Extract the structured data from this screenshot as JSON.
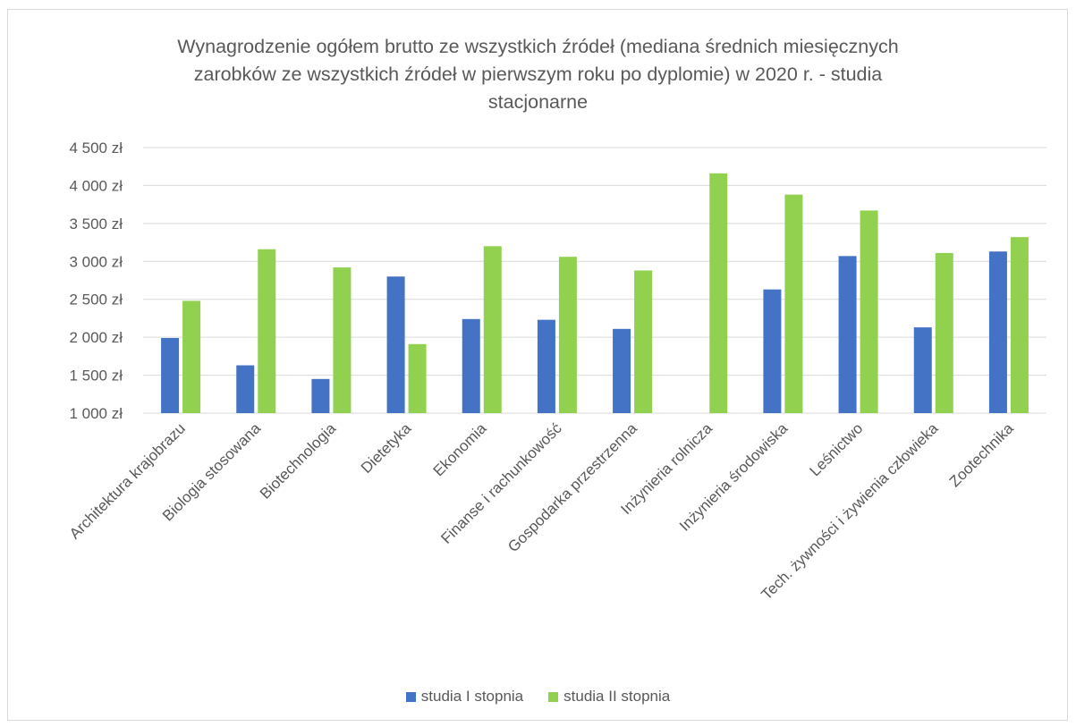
{
  "chart_data": {
    "type": "bar",
    "title_lines": [
      "Wynagrodzenie ogółem brutto ze wszystkich źródeł (mediana średnich miesięcznych",
      "zarobków ze wszystkich źródeł w pierwszym roku po dyplomie) w 2020 r. - studia",
      "stacjonarne"
    ],
    "categories": [
      "Architektura krajobrazu",
      "Biologia stosowana",
      "Biotechnologia",
      "Dietetyka",
      "Ekonomia",
      "Finanse i rachunkowość",
      "Gospodarka przestrzenna",
      "Inżynieria rolnicza",
      "Inżynieria środowiska",
      "Leśnictwo",
      "Tech. żywności i żywienia człowieka",
      "Zootechnika"
    ],
    "series": [
      {
        "name": "studia I stopnia",
        "color": "#4472c4",
        "values": [
          1990,
          1630,
          1450,
          2800,
          2240,
          2230,
          2110,
          null,
          2630,
          3070,
          2130,
          3130
        ]
      },
      {
        "name": "studia II stopnia",
        "color": "#92d050",
        "values": [
          2480,
          3160,
          2920,
          1910,
          3200,
          3060,
          2880,
          4160,
          3880,
          3670,
          3110,
          3320
        ]
      }
    ],
    "ylim": [
      1000,
      4500
    ],
    "yticks": [
      1000,
      1500,
      2000,
      2500,
      3000,
      3500,
      4000,
      4500
    ],
    "ytick_labels": [
      "1 000 zł",
      "1 500 zł",
      "2 000 zł",
      "2 500 zł",
      "3 000 zł",
      "3 500 zł",
      "4 000 zł",
      "4 500 zł"
    ],
    "grid": true,
    "legend_position": "bottom"
  }
}
